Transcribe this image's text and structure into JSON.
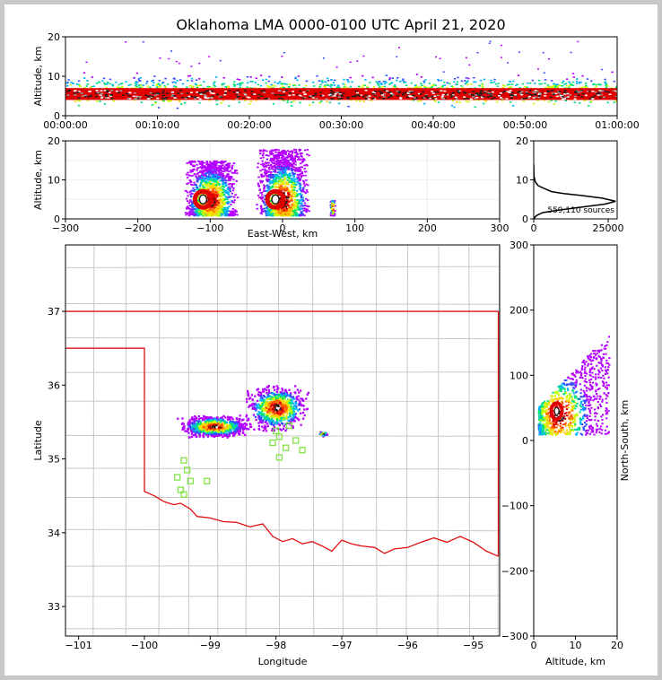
{
  "title": "Oklahoma LMA 0000-0100 UTC April 21, 2020",
  "colors": {
    "state_border": "#e01010",
    "county_lines": "#c8c8c8",
    "stations": "#7be33a",
    "density_scale": [
      "#b300ff",
      "#3a4bff",
      "#00b4ff",
      "#00e07a",
      "#c8ff00",
      "#ffd000",
      "#ff5a00",
      "#e00000",
      "#202020",
      "#ffffff"
    ]
  },
  "chart_data": [
    {
      "id": "time_height",
      "type": "heatmap",
      "ylabel": "Altitude, km",
      "xlim": [
        "00:00:00",
        "01:00:00"
      ],
      "ylim": [
        0,
        20
      ],
      "x_ticks": [
        "00:00:00",
        "00:10:00",
        "00:20:00",
        "00:30:00",
        "00:40:00",
        "00:50:00",
        "01:00:00"
      ],
      "y_ticks": [
        "0",
        "10",
        "20"
      ],
      "band_altitude_km": [
        2,
        11
      ],
      "core_altitude_km": [
        4,
        7
      ]
    },
    {
      "id": "east_west_height",
      "type": "heatmap",
      "xlabel": "East-West, km",
      "ylabel": "Altitude, km",
      "xlim": [
        -300,
        300
      ],
      "ylim": [
        0,
        20
      ],
      "x_ticks": [
        "−300",
        "−200",
        "−100",
        "0",
        "100",
        "200",
        "300"
      ],
      "y_ticks": [
        "0",
        "10",
        "20"
      ],
      "clusters": [
        {
          "center_km": -100,
          "width_km": 60,
          "top_km": 15,
          "core_km": 5
        },
        {
          "center_km": 0,
          "width_km": 60,
          "top_km": 18,
          "core_km": 5
        },
        {
          "center_km": 68,
          "width_km": 6,
          "top_km": 5,
          "core_km": 3
        }
      ]
    },
    {
      "id": "altitude_histogram",
      "type": "line",
      "annotation": "559,110 sources",
      "xlim": [
        0,
        28000
      ],
      "ylim": [
        0,
        20
      ],
      "x_ticks": [
        "0",
        "25000"
      ],
      "y_ticks": [
        "0",
        "10",
        "20"
      ],
      "series": [
        {
          "points": [
            [
              0,
              0
            ],
            [
              800,
              0.8
            ],
            [
              3000,
              1.6
            ],
            [
              8000,
              2.2
            ],
            [
              16000,
              3.0
            ],
            [
              24000,
              3.8
            ],
            [
              27500,
              4.5
            ],
            [
              23000,
              5.3
            ],
            [
              16000,
              6.0
            ],
            [
              10000,
              6.5
            ],
            [
              6000,
              7.0
            ],
            [
              3500,
              7.8
            ],
            [
              1500,
              8.5
            ],
            [
              500,
              9.5
            ],
            [
              100,
              11
            ],
            [
              0,
              14
            ]
          ]
        }
      ]
    },
    {
      "id": "plan_view",
      "type": "heatmap",
      "xlabel": "Longitude",
      "ylabel": "Latitude",
      "xlim": [
        -101.2,
        -94.6
      ],
      "ylim": [
        32.6,
        37.9
      ],
      "x_ticks": [
        "−101",
        "−100",
        "−99",
        "−98",
        "−97",
        "−96",
        "−95"
      ],
      "y_ticks": [
        "33",
        "34",
        "35",
        "36",
        "37"
      ],
      "clusters": [
        {
          "lon": -98.95,
          "lat": 35.45,
          "w": 0.8,
          "h": 0.22
        },
        {
          "lon": -98.0,
          "lat": 35.7,
          "w": 0.7,
          "h": 0.45
        },
        {
          "lon": -97.3,
          "lat": 35.35,
          "w": 0.1,
          "h": 0.05
        }
      ],
      "stations": [
        [
          -99.4,
          34.98
        ],
        [
          -99.35,
          34.85
        ],
        [
          -99.5,
          34.75
        ],
        [
          -99.3,
          34.7
        ],
        [
          -99.45,
          34.58
        ],
        [
          -99.4,
          34.52
        ],
        [
          -99.05,
          34.7
        ],
        [
          -97.8,
          35.45
        ],
        [
          -97.95,
          35.3
        ],
        [
          -98.05,
          35.22
        ],
        [
          -97.85,
          35.15
        ],
        [
          -97.7,
          35.25
        ],
        [
          -97.6,
          35.12
        ],
        [
          -97.95,
          35.02
        ],
        [
          -98.0,
          35.38
        ]
      ]
    },
    {
      "id": "north_south_height",
      "type": "heatmap",
      "xlabel": "Altitude, km",
      "ylabel": "North-South, km",
      "xlim": [
        0,
        20
      ],
      "ylim": [
        -300,
        300
      ],
      "x_ticks": [
        "0",
        "10",
        "20"
      ],
      "y_ticks": [
        "−300",
        "−200",
        "−100",
        "0",
        "100",
        "200",
        "300"
      ]
    }
  ]
}
